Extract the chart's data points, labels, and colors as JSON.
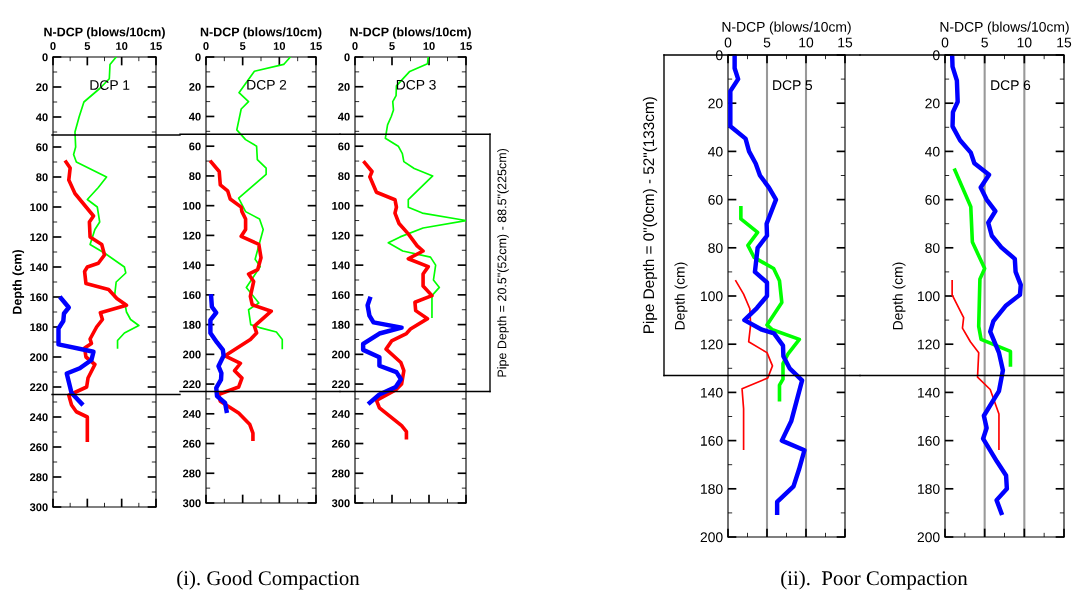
{
  "chart_data": [
    {
      "type": "line",
      "title": "DCP 1",
      "xlabel": "N-DCP (blows/10cm)",
      "ylabel": "Depth (cm)",
      "xlim": [
        0,
        15
      ],
      "xticks": [
        0,
        5,
        10,
        15
      ],
      "ylim": [
        300,
        0
      ],
      "yticks": [
        0,
        20,
        40,
        60,
        80,
        100,
        120,
        140,
        160,
        180,
        200,
        220,
        240,
        260,
        280,
        300
      ],
      "ref_lines": [
        {
          "axis": "y",
          "value": 52,
          "color": "#000000"
        },
        {
          "axis": "y",
          "value": 225,
          "color": "#000000"
        }
      ],
      "series": [
        {
          "color": "#00ff00",
          "x": [
            9.2,
            8.3,
            8.2,
            6.8,
            4.5,
            3.8,
            3.2,
            3.3,
            3.0,
            3.4,
            7.8,
            6.6,
            5.0,
            6.45,
            6.8,
            6.1,
            5.4,
            7.6,
            10.4,
            10.6,
            9.2,
            8.95,
            10.5,
            10.7,
            11.3,
            12.5,
            10.4,
            9.4,
            9.4
          ],
          "values": [
            0,
            5,
            14.5,
            21,
            30,
            40,
            50,
            60,
            65,
            70,
            80,
            87,
            95,
            100,
            110,
            115,
            125,
            131,
            140,
            144,
            150,
            160,
            165,
            170,
            175,
            179,
            184,
            189,
            194
          ]
        },
        {
          "color": "#ff0000",
          "x": [
            1.9,
            2.5,
            2.3,
            3.2,
            5.9,
            5.3,
            5.4,
            7.1,
            7.5,
            6.6,
            5.0,
            4.6,
            4.8,
            8.1,
            9.3,
            10.7,
            6.9,
            7.2,
            6.35,
            5.4,
            5.6,
            4.6,
            4.8,
            6.1,
            5.1,
            4.9,
            2.3,
            2.7,
            3.4,
            5.0,
            5.0,
            5.0
          ],
          "values": [
            70,
            74,
            82,
            91,
            106,
            110,
            120,
            125,
            132,
            137.5,
            140,
            143,
            151,
            155,
            161,
            165.5,
            170.5,
            175,
            180,
            188,
            191,
            194,
            200,
            205,
            214,
            220,
            225.5,
            232,
            236.5,
            240,
            249,
            255.5
          ]
        },
        {
          "color": "#0000ff",
          "x": [
            1.2,
            2.3,
            1.6,
            1.5,
            0.8,
            0.8,
            5.9,
            5.6,
            3.9,
            2.0,
            2.7,
            4.15
          ],
          "values": [
            161,
            167,
            171,
            176,
            181,
            191.6,
            196.5,
            202,
            207.5,
            211,
            224,
            231
          ]
        }
      ]
    },
    {
      "type": "line",
      "title": "DCP 2",
      "xlabel": "N-DCP (blows/10cm)",
      "xlim": [
        0,
        15
      ],
      "xticks": [
        0,
        5,
        10,
        15
      ],
      "ylim": [
        300,
        0
      ],
      "yticks": [
        0,
        20,
        40,
        60,
        80,
        100,
        120,
        140,
        160,
        180,
        200,
        220,
        240,
        260,
        280,
        300
      ],
      "ref_lines": [
        {
          "axis": "y",
          "value": 52,
          "color": "#000000"
        },
        {
          "axis": "y",
          "value": 225,
          "color": "#000000"
        }
      ],
      "annotations": [
        "(i). Good Compaction"
      ],
      "series": [
        {
          "color": "#00ff00",
          "x": [
            11.5,
            10.6,
            6.6,
            4.5,
            5.8,
            4.8,
            4.2,
            5.4,
            6.9,
            7.0,
            8.2,
            8.2,
            4.45,
            5.4,
            7.3,
            7.8,
            6.7,
            7.4,
            5.5,
            7.2,
            5.8,
            6.1,
            7.3,
            9.6,
            10.4,
            10.4
          ],
          "values": [
            0,
            5,
            9.6,
            24,
            30,
            35,
            49,
            55.6,
            60,
            69,
            74.7,
            79,
            95,
            104,
            109,
            116,
            136,
            141,
            155,
            165.5,
            170,
            180,
            182,
            185,
            190,
            196
          ]
        },
        {
          "color": "#ff0000",
          "x": [
            0.7,
            1.8,
            1.95,
            2.95,
            3.3,
            4.8,
            4.9,
            5.4,
            5.4,
            4.8,
            7.2,
            7.5,
            7.05,
            5.8,
            6.5,
            6.05,
            6.3,
            8.9,
            6.6,
            6.9,
            6.05,
            2.6,
            4.7,
            3.9,
            4.9,
            4.45,
            1.7,
            1.95,
            4.45,
            5.95,
            6.4,
            6.4
          ],
          "values": [
            70.6,
            77,
            86,
            90,
            95.5,
            101,
            104,
            109,
            116,
            120.6,
            126,
            135,
            143,
            146,
            151,
            161,
            166.6,
            171,
            181,
            185.6,
            190,
            201,
            206,
            211,
            216,
            222,
            227,
            231.6,
            239.5,
            247,
            253,
            257
          ]
        },
        {
          "color": "#0000ff",
          "x": [
            0.7,
            0.8,
            1.4,
            0.6,
            0.6,
            1.5,
            2.3,
            2.4,
            1.7,
            2.1,
            2.05,
            1.4,
            1.5,
            2.6,
            2.8
          ],
          "values": [
            161,
            168,
            172,
            177,
            185.6,
            192,
            197,
            201,
            208,
            212.6,
            217,
            222.6,
            228,
            232.7,
            238
          ]
        }
      ]
    },
    {
      "type": "line",
      "title": "DCP 3",
      "xlabel": "N-DCP (blows/10cm)",
      "xlim": [
        0,
        15
      ],
      "xticks": [
        0,
        5,
        10,
        15
      ],
      "ylim": [
        300,
        0
      ],
      "yticks": [
        0,
        20,
        40,
        60,
        80,
        100,
        120,
        140,
        160,
        180,
        200,
        220,
        240,
        260,
        280,
        300
      ],
      "ref_lines": [
        {
          "axis": "y",
          "value": 52,
          "color": "#000000",
          "label": "Pipe Depth = 20.5\"(52cm) - 88.5\"(225cm)"
        },
        {
          "axis": "y",
          "value": 225,
          "color": "#000000"
        }
      ],
      "series": [
        {
          "color": "#00ff00",
          "x": [
            9.9,
            9.8,
            7.4,
            5.6,
            5.55,
            5.1,
            5.2,
            4.9,
            4.4,
            4.1,
            5.85,
            6.4,
            6.6,
            8.0,
            10.5,
            7.2,
            7.2,
            9.1,
            15,
            9.2,
            6.1,
            4.5,
            6.45,
            10.2,
            10.9,
            10.6,
            11.4,
            10.4,
            10.4
          ],
          "values": [
            0,
            4.5,
            9.7,
            19.4,
            26,
            30,
            35.6,
            40,
            45.7,
            54.7,
            60,
            65,
            70.4,
            75,
            80,
            96,
            101,
            105,
            110,
            115,
            121,
            125,
            130.5,
            134.6,
            140,
            150,
            155,
            160.5,
            175
          ]
        },
        {
          "color": "#ff0000",
          "x": [
            1.3,
            2.3,
            2.0,
            2.9,
            5.4,
            5.6,
            5.4,
            5.95,
            7.2,
            8.4,
            9.2,
            7.2,
            9.9,
            9.2,
            9.2,
            10.4,
            8.1,
            8.2,
            9.8,
            7.5,
            6.95,
            4.95,
            4.2,
            6.2,
            6.6,
            6.3,
            5.5,
            2.9,
            3.3,
            6.3,
            6.95,
            6.95
          ],
          "values": [
            71,
            77,
            80.6,
            91,
            96,
            101,
            105,
            112,
            119,
            127,
            130.5,
            135.7,
            141,
            146,
            154,
            160.5,
            165,
            170.6,
            176,
            183,
            186,
            191,
            196.5,
            205.5,
            211,
            220,
            224,
            231,
            236,
            248,
            252,
            256
          ]
        },
        {
          "color": "#0000ff",
          "x": [
            2.0,
            1.7,
            1.95,
            2.5,
            6.3,
            3.3,
            1.1,
            1.1,
            3.3,
            3.3,
            5.6,
            6.2,
            5.5,
            3.3,
            2.0
          ],
          "values": [
            162.7,
            167,
            174,
            178.5,
            182,
            186,
            193,
            197,
            202,
            207.7,
            212,
            216.7,
            222,
            227,
            232.5
          ]
        }
      ]
    },
    {
      "type": "line",
      "title": "DCP 5",
      "xlabel": "N-DCP (blows/10cm)",
      "ylabel": "Depth (cm)",
      "xlim": [
        0,
        15
      ],
      "xticks": [
        0,
        5,
        10,
        15
      ],
      "ylim": [
        200,
        0
      ],
      "yticks": [
        0,
        20,
        40,
        60,
        80,
        100,
        120,
        140,
        160,
        180,
        200
      ],
      "ref_lines": [
        {
          "axis": "x",
          "value": 5,
          "color": "#999999"
        },
        {
          "axis": "x",
          "value": 10,
          "color": "#999999"
        },
        {
          "axis": "y",
          "value": 0,
          "color": "#000000",
          "label": "Pipe Depth = 0\"(0cm) - 52\"(133cm)"
        },
        {
          "axis": "y",
          "value": 133,
          "color": "#000000"
        }
      ],
      "annotations": [
        "(ii).  Poor Compaction"
      ],
      "series": [
        {
          "color": "#ff0000",
          "x": [
            1.0,
            2.0,
            2.8,
            2.9,
            2.65,
            5.0,
            5.7,
            5.1,
            1.8,
            2.0,
            2.0
          ],
          "values": [
            93.7,
            99.2,
            105.3,
            112,
            119,
            123.5,
            129,
            134,
            138.5,
            146.8,
            163.6
          ]
        },
        {
          "color": "#00ff00",
          "x": [
            1.65,
            1.65,
            3.8,
            2.55,
            3.35,
            5.85,
            6.6,
            6.9,
            5.0,
            5.7,
            9.15,
            7.7,
            7.05,
            7.05,
            6.6,
            6.6
          ],
          "values": [
            63.4,
            68,
            73.6,
            79,
            84,
            88.6,
            93.7,
            102.7,
            112,
            114,
            118,
            124,
            128,
            134.5,
            137,
            143
          ]
        },
        {
          "color": "#0000ff",
          "x": [
            0.85,
            0.85,
            1.3,
            0.3,
            0.3,
            2.25,
            2.7,
            3.55,
            4.1,
            5.25,
            6.15,
            4.95,
            5.0,
            3.8,
            3.45,
            5.0,
            5.0,
            3.7,
            2.1,
            4.35,
            5.9,
            7.05,
            7.1,
            7.9,
            9.5,
            8.1,
            6.9,
            9.8,
            9.1,
            8.4,
            6.3,
            6.3
          ],
          "values": [
            0,
            5.5,
            10,
            15,
            29.6,
            34.7,
            40,
            45,
            50,
            55,
            60,
            70,
            75,
            80,
            90,
            94.4,
            100,
            105,
            110,
            114,
            115.5,
            120.6,
            125,
            130,
            135,
            152,
            160,
            164,
            172,
            179,
            185.4,
            190
          ]
        }
      ]
    },
    {
      "type": "line",
      "title": "DCP 6",
      "xlabel": "N-DCP (blows/10cm)",
      "ylabel": "Depth (cm)",
      "xlim": [
        0,
        15
      ],
      "xticks": [
        0,
        5,
        10,
        15
      ],
      "ylim": [
        200,
        0
      ],
      "yticks": [
        0,
        20,
        40,
        60,
        80,
        100,
        120,
        140,
        160,
        180,
        200
      ],
      "ref_lines": [
        {
          "axis": "x",
          "value": 5,
          "color": "#999999"
        },
        {
          "axis": "x",
          "value": 10,
          "color": "#999999"
        },
        {
          "axis": "y",
          "value": 0,
          "color": "#000000"
        },
        {
          "axis": "y",
          "value": 133,
          "color": "#000000"
        }
      ],
      "series": [
        {
          "color": "#ff0000",
          "x": [
            0.9,
            0.9,
            2.35,
            2.2,
            3.2,
            4.25,
            4.1,
            5.7,
            6.8,
            6.8
          ],
          "values": [
            93.7,
            99.5,
            109,
            113.3,
            119,
            123.5,
            133.7,
            138.8,
            149,
            163.6
          ]
        },
        {
          "color": "#00ff00",
          "x": [
            1.25,
            3.25,
            3.45,
            5.0,
            4.4,
            4.25,
            4.55,
            8.25,
            8.25
          ],
          "values": [
            47.8,
            63,
            77.6,
            88.6,
            93,
            112.6,
            118,
            123,
            128.6
          ]
        },
        {
          "color": "#0000ff",
          "x": [
            0.9,
            0.95,
            1.5,
            1.6,
            1.0,
            0.95,
            1.9,
            3.25,
            3.7,
            5.55,
            4.5,
            5.25,
            6.35,
            5.45,
            5.9,
            7.1,
            8.8,
            8.9,
            9.55,
            9.45,
            7.7,
            6.1,
            5.7,
            6.8,
            7.3,
            6.8,
            4.9,
            5.25,
            4.8,
            6.55,
            7.7,
            7.8,
            6.5,
            7.1
          ],
          "values": [
            0,
            4.8,
            10.6,
            19.4,
            23.7,
            29.6,
            35.4,
            40.5,
            44.9,
            49.7,
            55,
            60,
            64.8,
            69.6,
            75,
            79.8,
            84.6,
            90,
            95.4,
            99.5,
            103.9,
            110.4,
            114.8,
            123.5,
            130.8,
            139.5,
            149.7,
            154.8,
            159.2,
            168.7,
            174.5,
            180,
            184.7,
            190
          ]
        }
      ]
    }
  ]
}
